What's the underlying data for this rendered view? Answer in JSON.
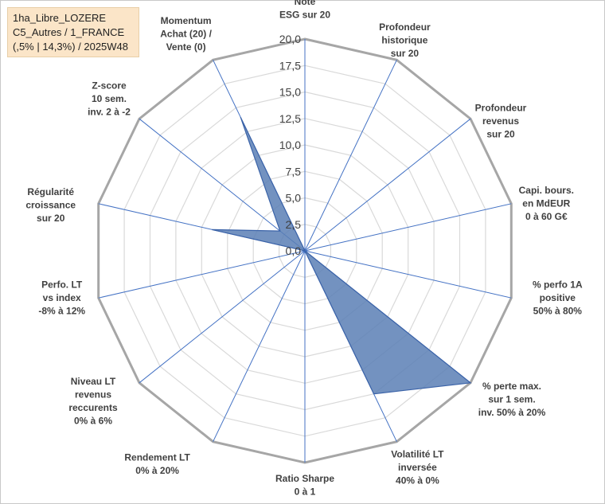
{
  "header": {
    "lines": [
      "1ha_Libre_LOZERE",
      "C5_Autres / 1_FRANCE",
      "(,5% | 14,3%) / 2025W48"
    ]
  },
  "chart_data": {
    "type": "radar",
    "axes": [
      [
        "Note",
        "ESG sur 20"
      ],
      [
        "Profondeur",
        "historique",
        "sur 20"
      ],
      [
        "Profondeur",
        "revenus",
        "sur 20"
      ],
      [
        "Capi. bours.",
        "en MdEUR",
        "0 à 60 G€"
      ],
      [
        "% perfo 1A",
        "positive",
        "50% à 80%"
      ],
      [
        "% perte max.",
        "sur 1 sem.",
        "inv. 50% à 20%"
      ],
      [
        "Volatilité LT",
        "inversée",
        "40% à 0%"
      ],
      [
        "Ratio Sharpe",
        "0 à 1"
      ],
      [
        "Rendement LT",
        "0% à 20%"
      ],
      [
        "Niveau LT",
        "revenus",
        "reccurents",
        "0% à 6%"
      ],
      [
        "Perfo. LT",
        "vs index",
        "-8% à 12%"
      ],
      [
        "Régularité",
        "croissance",
        "sur 20"
      ],
      [
        "Z-score",
        "10 sem.",
        "inv. 2 à -2"
      ],
      [
        "Momentum",
        "Achat (20) /",
        "Vente (0)"
      ]
    ],
    "values": [
      0,
      0,
      0,
      0,
      0,
      20,
      15,
      0,
      0,
      0,
      0,
      9,
      3,
      14
    ],
    "rmin": 0,
    "rmax": 20,
    "rticks": [
      "0,0",
      "2,5",
      "5,0",
      "7,5",
      "10,0",
      "12,5",
      "15,0",
      "17,5",
      "20,0"
    ],
    "grid": true,
    "colors": {
      "fill": "#5b7fb5",
      "stroke": "#3b63a8",
      "spoke": "#4472c4",
      "outer": "#a6a6a6",
      "grid": "#d9d9d9"
    }
  }
}
